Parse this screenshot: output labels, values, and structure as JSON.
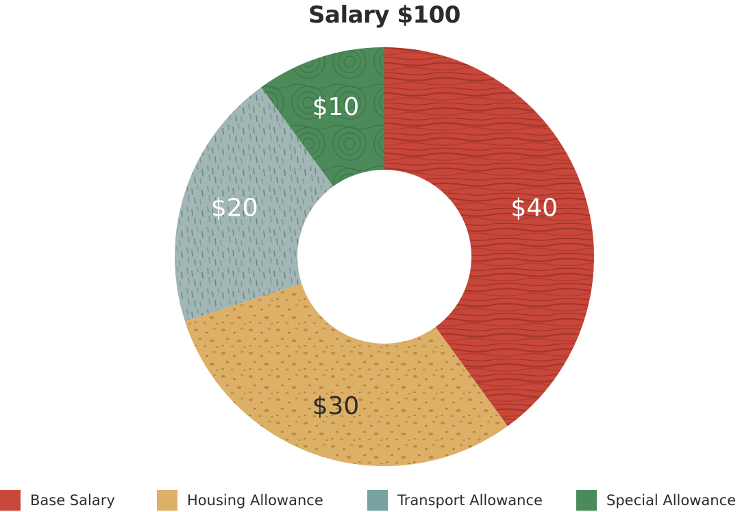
{
  "chart_data": {
    "type": "pie",
    "title": "Salary $100",
    "donut": true,
    "categories": [
      "Base Salary",
      "Housing Allowance",
      "Transport Allowance",
      "Special Allowance"
    ],
    "values": [
      40,
      30,
      20,
      10
    ],
    "data_labels": [
      "$40",
      "$30",
      "$20",
      "$10"
    ],
    "colors": [
      "#c8473a",
      "#ddb068",
      "#a2b6b6",
      "#4c8a5a"
    ],
    "legend_colors": [
      "#c8473a",
      "#ddb068",
      "#78a3a0",
      "#4c8a5a"
    ],
    "label_colors": [
      "#ffffff",
      "#2b2b2b",
      "#ffffff",
      "#ffffff"
    ],
    "legend_position": "bottom"
  }
}
